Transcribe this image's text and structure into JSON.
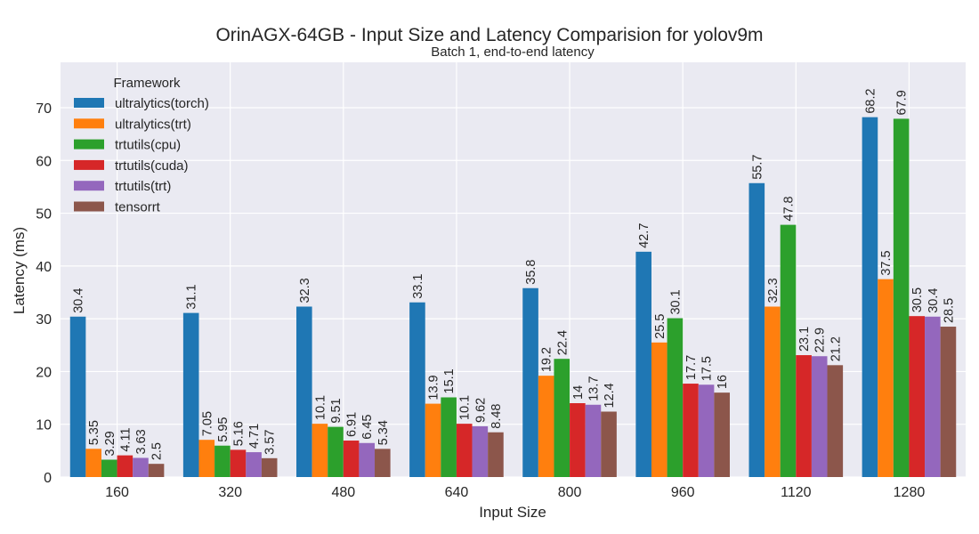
{
  "chart_data": {
    "type": "bar",
    "title": "OrinAGX-64GB - Input Size and Latency Comparision for yolov9m",
    "subtitle": "Batch 1, end-to-end latency",
    "xlabel": "Input Size",
    "ylabel": "Latency (ms)",
    "categories": [
      "160",
      "320",
      "480",
      "640",
      "800",
      "960",
      "1120",
      "1280"
    ],
    "ylim": [
      0,
      78.6
    ],
    "yticks": [
      0,
      10,
      20,
      30,
      40,
      50,
      60,
      70
    ],
    "grid": true,
    "legend": {
      "title": "Framework",
      "position": "top-left"
    },
    "series": [
      {
        "name": "ultralytics(torch)",
        "color": "#1f77b4",
        "values": [
          30.4,
          31.1,
          32.3,
          33.1,
          35.8,
          42.7,
          55.7,
          68.2
        ],
        "labels": [
          "30.4",
          "31.1",
          "32.3",
          "33.1",
          "35.8",
          "42.7",
          "55.7",
          "68.2"
        ]
      },
      {
        "name": "ultralytics(trt)",
        "color": "#ff7f0e",
        "values": [
          5.35,
          7.05,
          10.1,
          13.9,
          19.2,
          25.5,
          32.3,
          37.5
        ],
        "labels": [
          "5.35",
          "7.05",
          "10.1",
          "13.9",
          "19.2",
          "25.5",
          "32.3",
          "37.5"
        ]
      },
      {
        "name": "trtutils(cpu)",
        "color": "#2ca02c",
        "values": [
          3.29,
          5.95,
          9.51,
          15.1,
          22.4,
          30.1,
          47.8,
          67.9
        ],
        "labels": [
          "3.29",
          "5.95",
          "9.51",
          "15.1",
          "22.4",
          "30.1",
          "47.8",
          "67.9"
        ]
      },
      {
        "name": "trtutils(cuda)",
        "color": "#d62728",
        "values": [
          4.11,
          5.16,
          6.91,
          10.1,
          14,
          17.7,
          23.1,
          30.5
        ],
        "labels": [
          "4.11",
          "5.16",
          "6.91",
          "10.1",
          "14",
          "17.7",
          "23.1",
          "30.5"
        ]
      },
      {
        "name": "trtutils(trt)",
        "color": "#9467bd",
        "values": [
          3.63,
          4.71,
          6.45,
          9.62,
          13.7,
          17.5,
          22.9,
          30.4
        ],
        "labels": [
          "3.63",
          "4.71",
          "6.45",
          "9.62",
          "13.7",
          "17.5",
          "22.9",
          "30.4"
        ]
      },
      {
        "name": "tensorrt",
        "color": "#8c564b",
        "values": [
          2.5,
          3.57,
          5.34,
          8.48,
          12.4,
          16,
          21.2,
          28.5
        ],
        "labels": [
          "2.5",
          "3.57",
          "5.34",
          "8.48",
          "12.4",
          "16",
          "21.2",
          "28.5"
        ]
      }
    ]
  }
}
